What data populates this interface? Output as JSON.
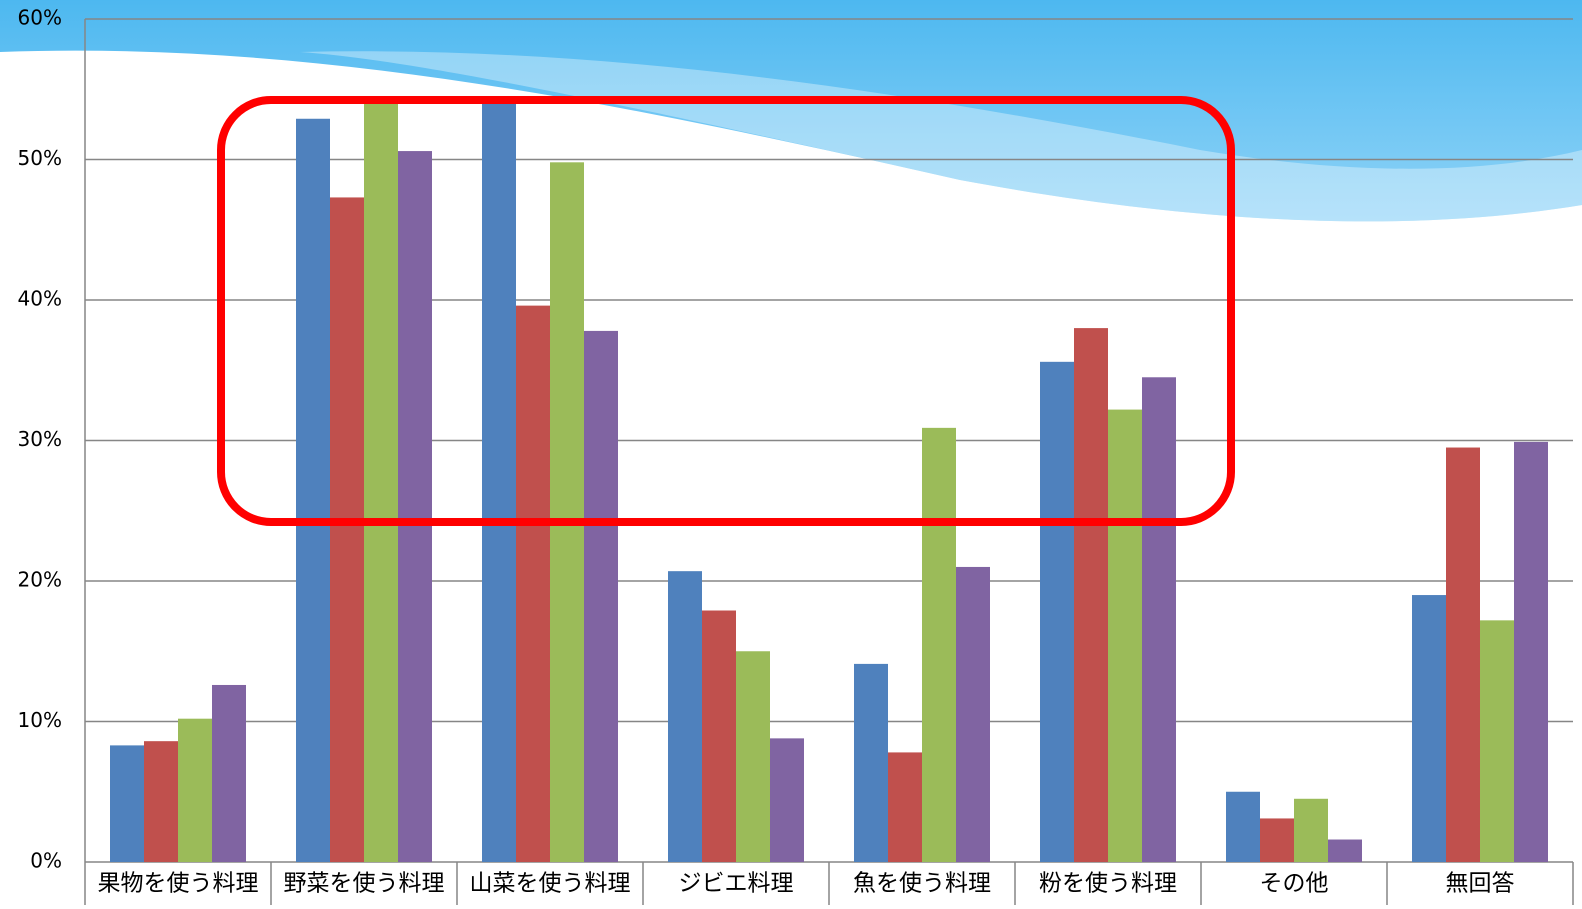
{
  "chart_data": {
    "type": "bar",
    "categories": [
      "果物を使う料理",
      "野菜を使う料理",
      "山菜を使う料理",
      "ジビエ料理",
      "魚を使う料理",
      "粉を使う料理",
      "その他",
      "無回答"
    ],
    "series": [
      {
        "color": "#4f81bd",
        "values": [
          8.3,
          52.9,
          54.0,
          20.7,
          14.1,
          35.6,
          5.0,
          19.0
        ]
      },
      {
        "color": "#c0504d",
        "values": [
          8.6,
          47.3,
          39.6,
          17.9,
          7.8,
          38.0,
          3.1,
          29.5
        ]
      },
      {
        "color": "#9bbb59",
        "values": [
          10.2,
          54.0,
          49.8,
          15.0,
          30.9,
          32.2,
          4.5,
          17.2
        ]
      },
      {
        "color": "#8064a2",
        "values": [
          12.6,
          50.6,
          37.8,
          8.8,
          21.0,
          34.5,
          1.6,
          29.9
        ]
      }
    ],
    "ylim": [
      0,
      60
    ],
    "yticks": [
      {
        "value": 0,
        "label": "0%"
      },
      {
        "value": 10,
        "label": "10%"
      },
      {
        "value": 20,
        "label": "20%"
      },
      {
        "value": 30,
        "label": "30%"
      },
      {
        "value": 40,
        "label": "40%"
      },
      {
        "value": 50,
        "label": "50%"
      },
      {
        "value": 60,
        "label": "60%"
      }
    ],
    "grid": true
  }
}
